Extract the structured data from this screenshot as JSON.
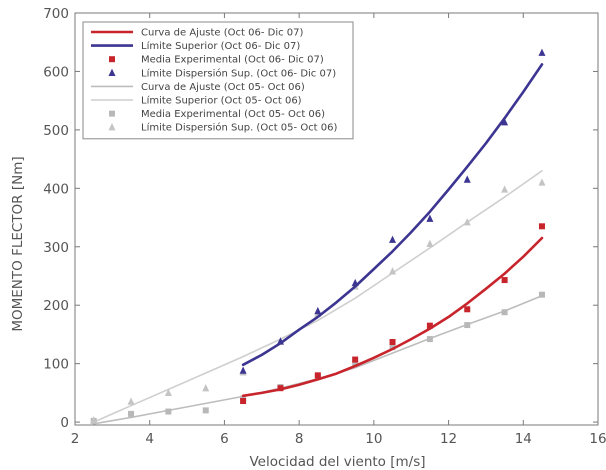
{
  "chart_data": {
    "type": "line",
    "xlabel": "Velocidad del viento [m/s]",
    "ylabel": "MOMENTO FLECTOR [Nm]",
    "xlim": [
      2,
      16
    ],
    "ylim": [
      -5,
      700
    ],
    "x_ticks": [
      2,
      4,
      6,
      8,
      10,
      12,
      14,
      16
    ],
    "y_ticks": [
      0,
      100,
      200,
      300,
      400,
      500,
      600,
      700
    ],
    "grid": false,
    "legend_position": "top-left",
    "series": [
      {
        "name": "Curva de Ajuste (Oct 06- Dic 07)",
        "kind": "line",
        "color": "#c8242c",
        "x": [
          6.5,
          7,
          7.5,
          8,
          8.5,
          9,
          9.5,
          10,
          10.5,
          11,
          11.5,
          12,
          12.5,
          13,
          13.5,
          14,
          14.5
        ],
        "y": [
          45,
          50,
          56,
          64,
          73,
          83,
          96,
          110,
          125,
          142,
          160,
          180,
          203,
          228,
          254,
          283,
          315
        ]
      },
      {
        "name": "Límite Superior (Oct 06- Dic 07)",
        "kind": "line",
        "color": "#3c3591",
        "x": [
          6.5,
          7,
          7.5,
          8,
          8.5,
          9,
          9.5,
          10,
          10.5,
          11,
          11.5,
          12,
          12.5,
          13,
          13.5,
          14,
          14.5
        ],
        "y": [
          98,
          115,
          135,
          158,
          180,
          205,
          232,
          262,
          292,
          325,
          360,
          398,
          437,
          477,
          520,
          565,
          612
        ]
      },
      {
        "name": "Media Experimental (Oct 06- Dic 07)",
        "kind": "square",
        "color": "#c8242c",
        "x": [
          6.5,
          7.5,
          8.5,
          9.5,
          10.5,
          11.5,
          12.5,
          13.5,
          14.5
        ],
        "y": [
          36,
          58,
          80,
          107,
          137,
          165,
          193,
          243,
          335
        ]
      },
      {
        "name": "Límite Dispersión Sup. (Oct 06- Dic 07)",
        "kind": "triangle",
        "color": "#3c3591",
        "x": [
          6.5,
          7.5,
          8.5,
          9.5,
          10.5,
          11.5,
          12.5,
          13.5,
          14.5
        ],
        "y": [
          88,
          138,
          190,
          238,
          312,
          348,
          415,
          513,
          632
        ]
      },
      {
        "name": "Curva de Ajuste (Oct 05- Oct 06)",
        "kind": "line",
        "color": "#bdbdbd",
        "x": [
          2.5,
          3.5,
          4.5,
          5.5,
          6.5,
          7.5,
          8.5,
          9.5,
          10.5,
          11.5,
          12.5,
          13.5,
          14.5
        ],
        "y": [
          -3,
          8,
          20,
          32,
          44,
          58,
          74,
          93,
          118,
          143,
          167,
          190,
          216
        ]
      },
      {
        "name": "Límite Superior (Oct 05- Oct 06)",
        "kind": "line",
        "color": "#cfcfcf",
        "x": [
          2.5,
          3.5,
          4.5,
          5.5,
          6.5,
          7.5,
          8.5,
          9.5,
          10.5,
          11.5,
          12.5,
          13.5,
          14.5
        ],
        "y": [
          0,
          28,
          56,
          84,
          112,
          142,
          174,
          212,
          255,
          298,
          342,
          385,
          430
        ]
      },
      {
        "name": "Media Experimental (Oct 05- Oct 06)",
        "kind": "square",
        "color": "#b8b8b8",
        "x": [
          2.5,
          3.5,
          4.5,
          5.5,
          6.5,
          7.5,
          8.5,
          9.5,
          10.5,
          11.5,
          12.5,
          13.5,
          14.5
        ],
        "y": [
          2,
          14,
          18,
          20,
          40,
          60,
          78,
          100,
          128,
          142,
          166,
          188,
          218
        ]
      },
      {
        "name": "Límite Dispersión Sup. (Oct 05- Oct 06)",
        "kind": "triangle",
        "color": "#c4c4c4",
        "x": [
          2.5,
          3.5,
          4.5,
          5.5,
          6.5,
          7.5,
          8.5,
          9.5,
          10.5,
          11.5,
          12.5,
          13.5,
          14.5
        ],
        "y": [
          3,
          35,
          50,
          58,
          85,
          138,
          185,
          232,
          258,
          305,
          342,
          398,
          410
        ]
      }
    ]
  }
}
